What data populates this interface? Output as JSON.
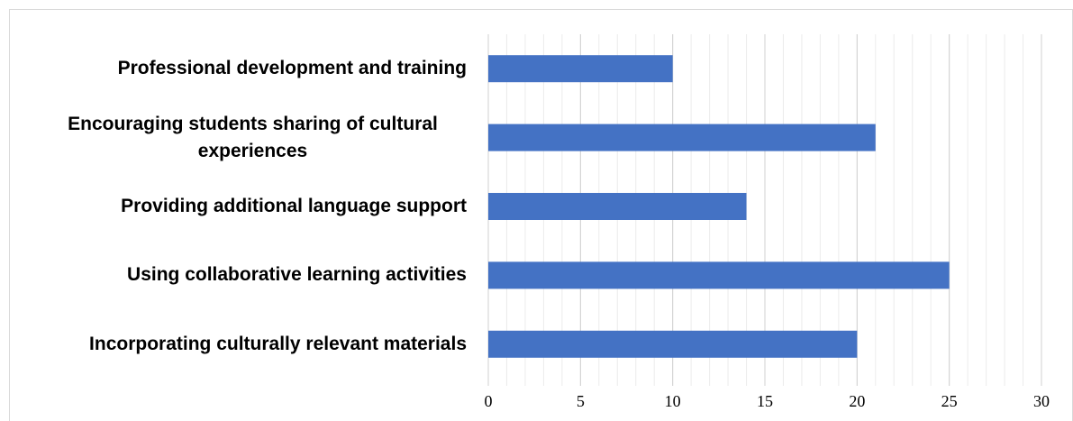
{
  "chart_data": {
    "type": "barh",
    "categories": [
      "Professional development and training",
      "Encouraging students sharing of cultural experiences",
      "Providing additional language support",
      "Using collaborative learning activities",
      "Incorporating culturally relevant materials"
    ],
    "values": [
      10,
      21,
      14,
      25,
      20
    ],
    "color": "#4472c4",
    "xlim": [
      0,
      30
    ],
    "xticks": [
      0,
      5,
      10,
      15,
      20,
      25,
      30
    ],
    "grid": true,
    "minor_grid_step": 1
  }
}
